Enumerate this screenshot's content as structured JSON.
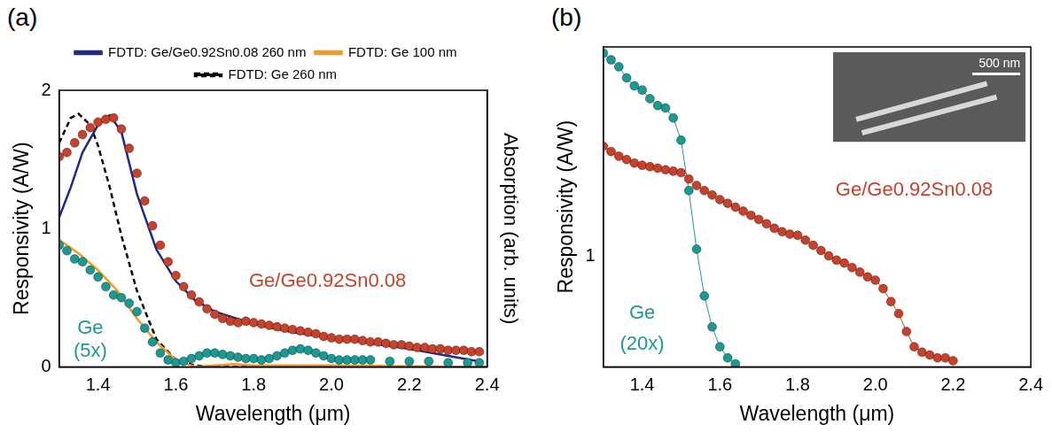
{
  "chart_data": [
    {
      "type": "line",
      "panel_label": "(a)",
      "xlabel": "Wavelength (μm)",
      "ylabel": "Responsivity (A/W)",
      "y2label": "Absorption (arb. units)",
      "xlim": [
        1.3,
        2.4
      ],
      "xticks": [
        1.4,
        1.6,
        1.8,
        {
          "value": 2,
          "label": "2.0"
        },
        2.2,
        2.4
      ],
      "ylim": [
        0,
        2
      ],
      "yticks": [
        0,
        1,
        2
      ],
      "grid": false,
      "legend": "top",
      "series": [
        {
          "name": "FDTD: Ge/Ge0.92Sn0.08 260 nm",
          "type": "line",
          "line_style": "solid",
          "color": "#1f2a8c",
          "x": [
            1.3,
            1.33,
            1.36,
            1.4,
            1.43,
            1.46,
            1.5,
            1.55,
            1.6,
            1.65,
            1.7,
            1.8,
            1.9,
            2.0,
            2.1,
            2.2,
            2.3,
            2.38
          ],
          "values": [
            1.08,
            1.3,
            1.55,
            1.75,
            1.82,
            1.7,
            1.25,
            0.85,
            0.62,
            0.48,
            0.4,
            0.31,
            0.25,
            0.21,
            0.17,
            0.13,
            0.08,
            0.04
          ]
        },
        {
          "name": "FDTD: Ge 100 nm",
          "type": "line",
          "line_style": "solid",
          "color": "#f39a1f",
          "x": [
            1.3,
            1.35,
            1.4,
            1.45,
            1.5,
            1.55,
            1.6,
            1.65,
            1.7,
            1.75,
            1.8,
            2.0,
            2.4
          ],
          "values": [
            0.92,
            0.82,
            0.7,
            0.55,
            0.35,
            0.18,
            0.05,
            0.0,
            0.01,
            0.02,
            0.01,
            0.01,
            0.0
          ]
        },
        {
          "name": "FDTD: Ge 260 nm",
          "type": "line",
          "line_style": "dashed",
          "color": "#000000",
          "x": [
            1.3,
            1.33,
            1.35,
            1.38,
            1.4,
            1.43,
            1.46,
            1.5,
            1.55,
            1.6,
            1.65,
            1.7,
            2.4
          ],
          "values": [
            1.62,
            1.8,
            1.83,
            1.75,
            1.6,
            1.3,
            0.95,
            0.55,
            0.2,
            0.05,
            0.01,
            0.0,
            0.0
          ]
        },
        {
          "type": "scatter",
          "marker": "circle",
          "color": "#c8412b",
          "x": [
            1.3,
            1.32,
            1.34,
            1.36,
            1.38,
            1.4,
            1.42,
            1.44,
            1.46,
            1.48,
            1.5,
            1.52,
            1.54,
            1.56,
            1.58,
            1.6,
            1.62,
            1.64,
            1.66,
            1.68,
            1.7,
            1.72,
            1.74,
            1.76,
            1.78,
            1.8,
            1.82,
            1.84,
            1.86,
            1.88,
            1.9,
            1.92,
            1.94,
            1.96,
            1.98,
            2.0,
            2.02,
            2.04,
            2.06,
            2.08,
            2.1,
            2.12,
            2.14,
            2.16,
            2.18,
            2.2,
            2.22,
            2.24,
            2.26,
            2.28,
            2.3,
            2.32,
            2.34,
            2.36,
            2.38
          ],
          "values": [
            1.52,
            1.55,
            1.62,
            1.68,
            1.73,
            1.77,
            1.79,
            1.8,
            1.72,
            1.58,
            1.4,
            1.2,
            1.02,
            0.88,
            0.76,
            0.66,
            0.58,
            0.52,
            0.47,
            0.42,
            0.38,
            0.35,
            0.33,
            0.32,
            0.33,
            0.32,
            0.31,
            0.3,
            0.29,
            0.28,
            0.27,
            0.26,
            0.25,
            0.24,
            0.22,
            0.21,
            0.2,
            0.2,
            0.2,
            0.19,
            0.18,
            0.18,
            0.17,
            0.16,
            0.16,
            0.15,
            0.14,
            0.14,
            0.13,
            0.13,
            0.12,
            0.12,
            0.12,
            0.11,
            0.11
          ]
        },
        {
          "type": "scatter",
          "marker": "circle",
          "color": "#1a9a92",
          "x": [
            1.3,
            1.32,
            1.34,
            1.36,
            1.38,
            1.4,
            1.42,
            1.44,
            1.46,
            1.48,
            1.5,
            1.52,
            1.54,
            1.56,
            1.58,
            1.6,
            1.62,
            1.64,
            1.66,
            1.68,
            1.7,
            1.72,
            1.74,
            1.76,
            1.78,
            1.8,
            1.82,
            1.84,
            1.86,
            1.88,
            1.9,
            1.92,
            1.94,
            1.96,
            1.98,
            2.0,
            2.02,
            2.04,
            2.06,
            2.08,
            2.1,
            2.15,
            2.2,
            2.25,
            2.3,
            2.35,
            2.38
          ],
          "values": [
            0.88,
            0.84,
            0.78,
            0.76,
            0.7,
            0.65,
            0.58,
            0.52,
            0.5,
            0.46,
            0.4,
            0.28,
            0.18,
            0.1,
            0.05,
            0.03,
            0.04,
            0.06,
            0.08,
            0.1,
            0.1,
            0.09,
            0.08,
            0.07,
            0.06,
            0.06,
            0.05,
            0.06,
            0.08,
            0.1,
            0.12,
            0.13,
            0.12,
            0.1,
            0.08,
            0.06,
            0.05,
            0.05,
            0.05,
            0.05,
            0.05,
            0.04,
            0.04,
            0.04,
            0.03,
            0.03,
            0.03
          ]
        }
      ],
      "annotations": [
        {
          "text": "Ge/Ge0.92Sn0.08",
          "x": 1.99,
          "y": 0.62,
          "color": "#c8412b"
        },
        {
          "text": "Ge",
          "x": 1.38,
          "y": 0.28,
          "color": "#1a9a92"
        },
        {
          "text": "(5x)",
          "x": 1.38,
          "y": 0.11,
          "color": "#1a9a92"
        }
      ]
    },
    {
      "type": "scatter",
      "panel_label": "(b)",
      "log": "y",
      "xlabel": "Wavelength (μm)",
      "ylabel": "Responsivity (A/W)",
      "xlim": [
        1.3,
        2.4
      ],
      "xticks": [
        1.4,
        1.6,
        1.8,
        {
          "value": 2,
          "label": "2.0"
        },
        2.2,
        2.4
      ],
      "ylim": [
        0.45,
        4.5
      ],
      "yticks": [
        1
      ],
      "grid": false,
      "series": [
        {
          "type": "line",
          "marker": "circle",
          "color": "#c8412b",
          "x": [
            1.3,
            1.32,
            1.34,
            1.36,
            1.38,
            1.4,
            1.42,
            1.44,
            1.46,
            1.48,
            1.5,
            1.52,
            1.54,
            1.56,
            1.58,
            1.6,
            1.62,
            1.64,
            1.66,
            1.68,
            1.7,
            1.72,
            1.74,
            1.76,
            1.78,
            1.8,
            1.82,
            1.84,
            1.86,
            1.88,
            1.9,
            1.92,
            1.94,
            1.96,
            1.98,
            2.0,
            2.02,
            2.04,
            2.06,
            2.08,
            2.1,
            2.12,
            2.14,
            2.16,
            2.18,
            2.2
          ],
          "values": [
            2.2,
            2.12,
            2.05,
            2.0,
            1.95,
            1.92,
            1.9,
            1.88,
            1.86,
            1.84,
            1.82,
            1.74,
            1.66,
            1.6,
            1.55,
            1.5,
            1.46,
            1.42,
            1.38,
            1.34,
            1.3,
            1.26,
            1.22,
            1.19,
            1.17,
            1.16,
            1.12,
            1.08,
            1.04,
            1.0,
            0.97,
            0.95,
            0.92,
            0.89,
            0.86,
            0.84,
            0.79,
            0.72,
            0.66,
            0.58,
            0.52,
            0.5,
            0.49,
            0.48,
            0.48,
            0.47
          ]
        },
        {
          "type": "line",
          "marker": "circle",
          "color": "#1a9a92",
          "x": [
            1.3,
            1.32,
            1.34,
            1.36,
            1.38,
            1.4,
            1.42,
            1.44,
            1.46,
            1.48,
            1.5,
            1.52,
            1.54,
            1.56,
            1.58,
            1.6,
            1.62,
            1.64
          ],
          "values": [
            4.3,
            4.1,
            3.9,
            3.6,
            3.4,
            3.3,
            3.1,
            2.95,
            2.9,
            2.7,
            2.3,
            1.6,
            1.05,
            0.75,
            0.6,
            0.52,
            0.48,
            0.46
          ]
        }
      ],
      "annotations": [
        {
          "text": "Ge/Ge0.92Sn0.08",
          "x": 2.1,
          "y": 1.6,
          "color": "#c8412b"
        },
        {
          "text": "Ge",
          "x": 1.4,
          "y": 0.66,
          "color": "#1a9a92"
        },
        {
          "text": "(20x)",
          "x": 1.4,
          "y": 0.53,
          "color": "#1a9a92"
        }
      ],
      "inset": {
        "text": "500 nm"
      }
    }
  ]
}
